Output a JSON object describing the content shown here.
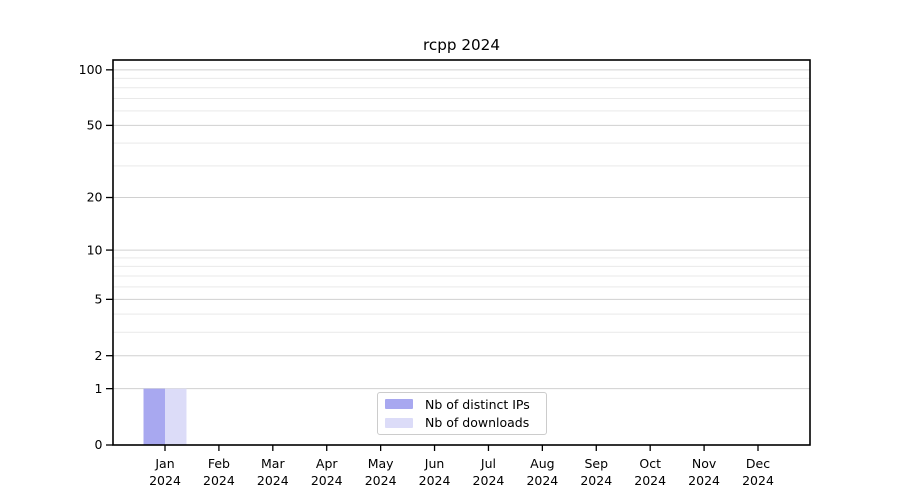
{
  "chart_data": {
    "type": "bar",
    "title": "rcpp 2024",
    "year": "2024",
    "categories": [
      "Jan",
      "Feb",
      "Mar",
      "Apr",
      "May",
      "Jun",
      "Jul",
      "Aug",
      "Sep",
      "Oct",
      "Nov",
      "Dec"
    ],
    "series": [
      {
        "name": "Nb of distinct IPs",
        "color": "#a8a8f0",
        "values": [
          1,
          0,
          0,
          0,
          0,
          0,
          0,
          0,
          0,
          0,
          0,
          0
        ]
      },
      {
        "name": "Nb of downloads",
        "color": "#dcdcf8",
        "values": [
          1,
          0,
          0,
          0,
          0,
          0,
          0,
          0,
          0,
          0,
          0,
          0
        ]
      }
    ],
    "xlabel": "",
    "ylabel": "",
    "yscale": "log1p",
    "ylim": [
      0,
      113
    ],
    "yticks": [
      0,
      1,
      2,
      5,
      10,
      20,
      50,
      100
    ],
    "yminorticks": [
      3,
      4,
      6,
      7,
      8,
      9,
      30,
      40,
      60,
      70,
      80,
      90
    ],
    "grid": true,
    "legend_position": "lower center"
  },
  "style": {
    "background": "#ffffff",
    "axis_color": "#000000",
    "text_color": "#000000",
    "grid_major_color": "#d0d0d0",
    "grid_minor_color": "#e9e9e9",
    "legend_border_color": "#cccccc",
    "legend_background": "#ffffff"
  }
}
